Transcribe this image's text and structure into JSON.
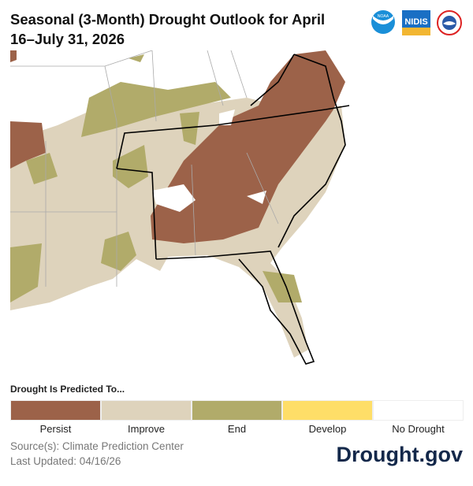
{
  "title": "Seasonal (3-Month) Drought Outlook for April 16–July 31, 2026",
  "logos": {
    "noaa": "NOAA",
    "nidis": "NIDIS",
    "nws": "NATIONAL WEATHER SERVICE"
  },
  "legend": {
    "title": "Drought Is Predicted To...",
    "items": [
      {
        "label": "Persist",
        "color": "#9c6249"
      },
      {
        "label": "Improve",
        "color": "#ded3bc"
      },
      {
        "label": "End",
        "color": "#b1ab6a"
      },
      {
        "label": "Develop",
        "color": "#fede68"
      },
      {
        "label": "No Drought",
        "color": "#ffffff"
      }
    ]
  },
  "source": "Source(s): Climate Prediction Center",
  "updated": "Last Updated: 04/16/26",
  "brand": "Drought.gov"
}
